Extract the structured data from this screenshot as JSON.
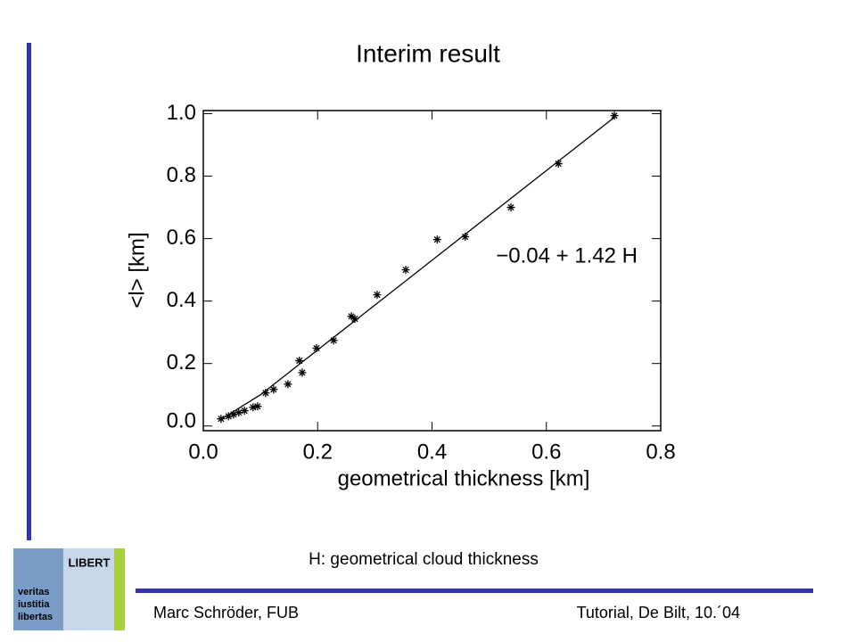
{
  "slide": {
    "title": "Interim result",
    "caption": "H: geometrical cloud thickness",
    "footer_left": "Marc Schröder, FUB",
    "footer_right": "Tutorial, De Bilt, 10.´04",
    "logo_banner": "LIBERT",
    "logo_motto": [
      "veritas",
      "iustitia",
      "libertas"
    ]
  },
  "chart_data": {
    "type": "scatter",
    "x_label": "geometrical thickness [km]",
    "y_label": "<l> [km]",
    "annotation": "−0.04 + 1.42 H",
    "xlim": [
      0,
      0.8
    ],
    "ylim": [
      -0.015,
      1.01
    ],
    "xticks": [
      {
        "value": 0,
        "label": "0.0"
      },
      0.2,
      0.4,
      0.6,
      0.8
    ],
    "yticks": [
      {
        "value": 0,
        "label": "0.0"
      },
      0.2,
      0.4,
      0.6,
      0.8,
      {
        "value": 1,
        "label": "1.0"
      }
    ],
    "color": "#000000",
    "x": [
      0.031,
      0.044,
      0.053,
      0.062,
      0.072,
      0.087,
      0.095,
      0.109,
      0.123,
      0.148,
      0.168,
      0.173,
      0.198,
      0.228,
      0.259,
      0.265,
      0.304,
      0.354,
      0.409,
      0.458,
      0.538,
      0.621,
      0.719
    ],
    "values": [
      0.023,
      0.031,
      0.037,
      0.043,
      0.049,
      0.06,
      0.063,
      0.106,
      0.117,
      0.134,
      0.209,
      0.171,
      0.249,
      0.274,
      0.351,
      0.343,
      0.42,
      0.5,
      0.597,
      0.606,
      0.7,
      0.84,
      0.994
    ],
    "fit": {
      "x": [
        0.03,
        0.1,
        0.72
      ],
      "values": [
        0.02,
        0.1,
        0.99
      ]
    }
  }
}
